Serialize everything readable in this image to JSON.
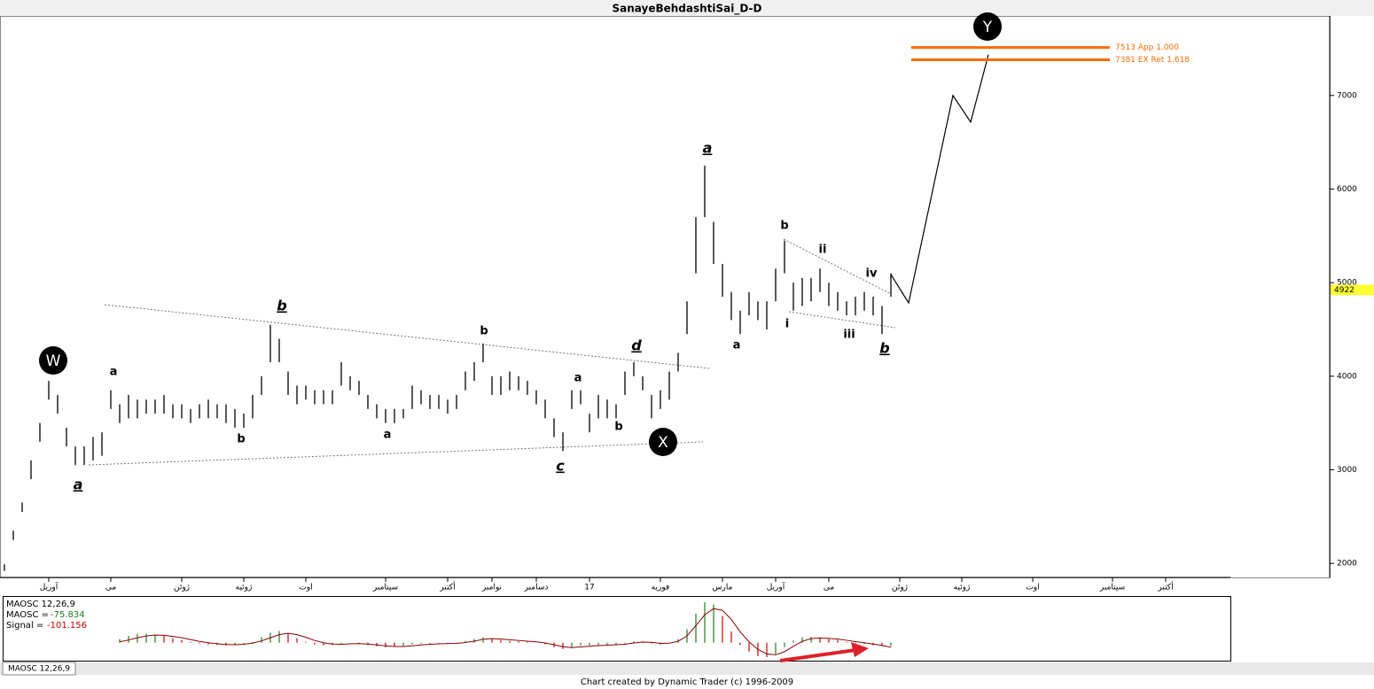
{
  "chart_data": {
    "type": "ohlc",
    "title": "SanayeBehdashtiSai_D-D",
    "categories": [
      null,
      null,
      null,
      null,
      null,
      "آوریل",
      null,
      null,
      null,
      null,
      null,
      null,
      "می",
      null,
      null,
      null,
      null,
      null,
      null,
      null,
      "ژوئن",
      null,
      null,
      null,
      null,
      null,
      null,
      "ژوئیه",
      null,
      null,
      null,
      null,
      null,
      null,
      "اوت",
      null,
      null,
      null,
      null,
      null,
      null,
      null,
      null,
      "سپتامبر",
      null,
      null,
      null,
      null,
      null,
      null,
      "أکتبر",
      null,
      null,
      null,
      null,
      "نوامبر",
      null,
      null,
      null,
      null,
      "دسامبر",
      null,
      null,
      null,
      null,
      null,
      "17",
      null,
      null,
      null,
      null,
      null,
      null,
      null,
      "فوریه",
      null,
      null,
      null,
      null,
      null,
      null,
      "مارس",
      null,
      null,
      null,
      null,
      null,
      "آوریل",
      null,
      null,
      null,
      null,
      null,
      "می",
      null,
      null,
      null,
      null,
      null,
      null,
      null,
      "ژوئن",
      null,
      null,
      null,
      null,
      null,
      null,
      "ژوئیه",
      null,
      null,
      null,
      null,
      null,
      null,
      null,
      "اوت",
      null,
      null,
      null,
      null,
      null,
      null,
      null,
      null,
      "سپتامبر",
      null,
      null,
      null,
      null,
      null,
      "أکتبر",
      null,
      null,
      null,
      null,
      null,
      null,
      null
    ],
    "high": [
      1990,
      2350,
      2650,
      3100,
      3500,
      3950,
      3800,
      3450,
      3250,
      3250,
      3350,
      3400,
      3850,
      3700,
      3800,
      3750,
      3750,
      3750,
      3800,
      3700,
      3700,
      3650,
      3700,
      3750,
      3700,
      3700,
      3650,
      3600,
      3800,
      4000,
      4550,
      4400,
      4050,
      3900,
      3900,
      3850,
      3850,
      3850,
      4150,
      4000,
      3950,
      3800,
      3700,
      3650,
      3650,
      3650,
      3900,
      3850,
      3800,
      3800,
      3750,
      3800,
      4050,
      4150,
      4350,
      4000,
      4000,
      4050,
      4000,
      3950,
      3850,
      3750,
      3550,
      3400,
      3850,
      3850,
      3600,
      3800,
      3750,
      3700,
      4050,
      4150,
      4000,
      3800,
      3850,
      4050,
      4250,
      4800,
      5700,
      6250,
      5650,
      5200,
      4900,
      4700,
      4900,
      4800,
      4800,
      5150,
      5450,
      5000,
      5050,
      5050,
      5150,
      5000,
      4900,
      4800,
      4850,
      4900,
      4850,
      4750,
      5100,
      null,
      null,
      null,
      null,
      null,
      null,
      null,
      null,
      null,
      null,
      null,
      null,
      null,
      null,
      null,
      null,
      null,
      null,
      null,
      null,
      null,
      null,
      null,
      null,
      null,
      null,
      null,
      null,
      null,
      null,
      null,
      null,
      null,
      null,
      null,
      null,
      null,
      null
    ],
    "low": [
      1920,
      2250,
      2550,
      2900,
      3300,
      3750,
      3600,
      3250,
      3050,
      3050,
      3100,
      3150,
      3650,
      3500,
      3550,
      3550,
      3600,
      3600,
      3600,
      3550,
      3550,
      3500,
      3550,
      3550,
      3550,
      3500,
      3450,
      3450,
      3550,
      3800,
      4150,
      4150,
      3800,
      3700,
      3750,
      3700,
      3700,
      3700,
      3900,
      3850,
      3800,
      3650,
      3550,
      3500,
      3500,
      3550,
      3650,
      3700,
      3650,
      3650,
      3600,
      3650,
      3850,
      3950,
      4150,
      3800,
      3800,
      3850,
      3850,
      3800,
      3700,
      3550,
      3350,
      3200,
      3650,
      3700,
      3400,
      3550,
      3550,
      3550,
      3800,
      4000,
      3850,
      3550,
      3650,
      3750,
      4050,
      4450,
      5100,
      5700,
      5200,
      4850,
      4600,
      4450,
      4650,
      4600,
      4500,
      4800,
      5100,
      4700,
      4750,
      4800,
      4900,
      4750,
      4700,
      4650,
      4650,
      4700,
      4650,
      4450,
      4850,
      null,
      null,
      null,
      null,
      null,
      null,
      null,
      null,
      null,
      null,
      null,
      null,
      null,
      null,
      null,
      null,
      null,
      null,
      null,
      null,
      null,
      null,
      null,
      null,
      null,
      null,
      null,
      null,
      null,
      null,
      null,
      null,
      null,
      null,
      null,
      null,
      null,
      null
    ],
    "projection": {
      "x": [
        100,
        102,
        107,
        109,
        111
      ],
      "values": [
        5087,
        4784,
        7000,
        6716,
        7436
      ]
    },
    "levels": [
      {
        "value": 7513,
        "label": "7513 App 1.000"
      },
      {
        "value": 7381,
        "label": "7381 EX Ret 1.618"
      }
    ],
    "level_color": "#ff6a00",
    "last_price": 4922,
    "ylim": [
      1850,
      7850
    ],
    "yticks": [
      2000,
      3000,
      4000,
      5000,
      6000,
      7000
    ],
    "wave_labels": [
      "W",
      "a",
      "a",
      "b",
      "b",
      "b",
      "a",
      "c",
      "a",
      "b",
      "d",
      "X",
      "a",
      "a",
      "b",
      "i",
      "ii",
      "iii",
      "iv",
      "b",
      "Y"
    ],
    "indicator": {
      "name": "MAOSC 12,26,9",
      "osc_label": "MAOSC =",
      "signal_label": "Signal =",
      "ylim": [
        -380,
        1000
      ],
      "up_color": "#1f7a1f",
      "down_color": "#cc0000",
      "osc": [
        null,
        null,
        null,
        null,
        null,
        null,
        null,
        null,
        null,
        null,
        null,
        null,
        null,
        80,
        150,
        200,
        200,
        180,
        150,
        100,
        60,
        20,
        -20,
        -40,
        -50,
        -60,
        -40,
        -20,
        20,
        120,
        220,
        260,
        200,
        100,
        20,
        -40,
        -60,
        -50,
        -20,
        0,
        -20,
        -50,
        -80,
        -100,
        -90,
        -70,
        -40,
        -20,
        -20,
        -10,
        -20,
        -10,
        40,
        80,
        120,
        80,
        60,
        40,
        30,
        20,
        0,
        -40,
        -100,
        -140,
        -100,
        -60,
        -60,
        -50,
        -40,
        -40,
        -20,
        30,
        30,
        -20,
        -40,
        0,
        80,
        300,
        650,
        900,
        850,
        600,
        250,
        -50,
        -200,
        -300,
        -320,
        -250,
        -100,
        50,
        120,
        130,
        100,
        80,
        60,
        20,
        -10,
        -30,
        -60,
        -80,
        -75.834,
        null,
        null,
        null,
        null,
        null,
        null,
        null,
        null,
        null,
        null,
        null,
        null,
        null,
        null,
        null,
        null,
        null,
        null,
        null,
        null,
        null,
        null,
        null,
        null,
        null,
        null,
        null,
        null,
        null,
        null,
        null,
        null,
        null,
        null,
        null,
        null,
        null,
        null
      ],
      "signal": [
        null,
        null,
        null,
        null,
        null,
        null,
        null,
        null,
        null,
        null,
        null,
        null,
        null,
        20,
        60,
        110,
        150,
        170,
        165,
        140,
        110,
        70,
        30,
        0,
        -25,
        -40,
        -45,
        -35,
        -10,
        40,
        110,
        180,
        210,
        180,
        120,
        50,
        0,
        -30,
        -35,
        -25,
        -20,
        -30,
        -50,
        -70,
        -85,
        -85,
        -70,
        -50,
        -35,
        -25,
        -20,
        -15,
        5,
        35,
        75,
        90,
        80,
        65,
        50,
        35,
        20,
        -5,
        -45,
        -90,
        -110,
        -95,
        -80,
        -65,
        -55,
        -45,
        -35,
        -5,
        15,
        10,
        -15,
        -10,
        30,
        150,
        380,
        620,
        760,
        720,
        520,
        240,
        20,
        -150,
        -250,
        -270,
        -200,
        -80,
        30,
        90,
        105,
        95,
        80,
        55,
        25,
        0,
        -30,
        -60,
        -101.156,
        null,
        null,
        null,
        null,
        null,
        null,
        null,
        null,
        null,
        null,
        null,
        null,
        null,
        null,
        null,
        null,
        null,
        null,
        null,
        null,
        null,
        null,
        null,
        null,
        null,
        null,
        null,
        null,
        null,
        null,
        null,
        null,
        null,
        null,
        null,
        null,
        null,
        null
      ]
    },
    "footer": "Chart created by Dynamic Trader  (c) 1996-2009"
  }
}
